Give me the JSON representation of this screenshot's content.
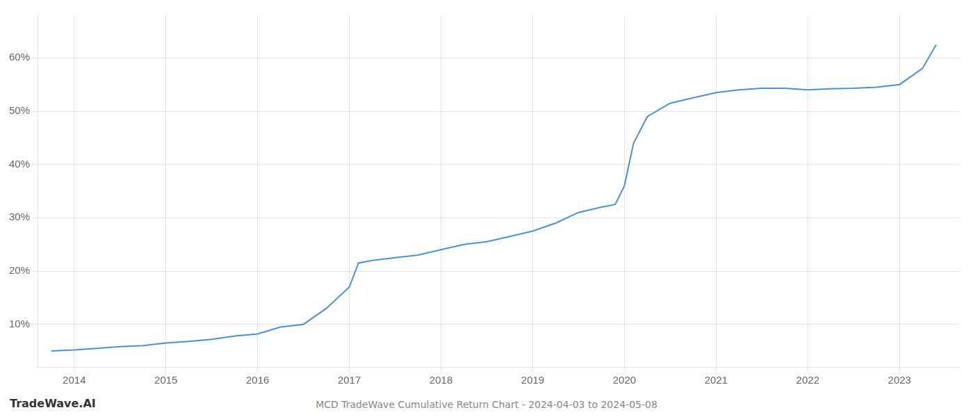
{
  "chart_data": {
    "type": "line",
    "title": "MCD TradeWave Cumulative Return Chart - 2024-04-03 to 2024-05-08",
    "annotations": [
      "TradeWave.AI"
    ],
    "x": [
      2013.75,
      2014.0,
      2014.25,
      2014.5,
      2014.75,
      2015.0,
      2015.25,
      2015.5,
      2015.75,
      2016.0,
      2016.25,
      2016.5,
      2016.75,
      2017.0,
      2017.1,
      2017.25,
      2017.5,
      2017.75,
      2018.0,
      2018.25,
      2018.5,
      2018.75,
      2019.0,
      2019.25,
      2019.5,
      2019.75,
      2019.9,
      2020.0,
      2020.1,
      2020.25,
      2020.5,
      2020.75,
      2021.0,
      2021.25,
      2021.5,
      2021.75,
      2022.0,
      2022.25,
      2022.5,
      2022.75,
      2023.0,
      2023.25,
      2023.4
    ],
    "values": [
      5.0,
      5.2,
      5.5,
      5.8,
      6.0,
      6.5,
      6.8,
      7.2,
      7.8,
      8.2,
      9.5,
      10.0,
      13.0,
      17.0,
      21.5,
      22.0,
      22.5,
      23.0,
      24.0,
      25.0,
      25.5,
      26.5,
      27.5,
      29.0,
      31.0,
      32.0,
      32.5,
      36.0,
      44.0,
      49.0,
      51.5,
      52.5,
      53.5,
      54.0,
      54.3,
      54.3,
      54.0,
      54.2,
      54.3,
      54.5,
      55.0,
      58.0,
      62.5
    ],
    "color": "#4a90d9",
    "marker": "none",
    "xlim": [
      2013.6,
      2023.65
    ],
    "xticks": [
      2014,
      2015,
      2016,
      2017,
      2018,
      2019,
      2020,
      2021,
      2022,
      2023
    ],
    "ylim": [
      2,
      68
    ],
    "yticks": [
      {
        "value": 10,
        "label": "10%"
      },
      {
        "value": 20,
        "label": "20%"
      },
      {
        "value": 30,
        "label": "30%"
      },
      {
        "value": 40,
        "label": "40%"
      },
      {
        "value": 50,
        "label": "50%"
      },
      {
        "value": 60,
        "label": "60%"
      }
    ],
    "grid": true
  }
}
